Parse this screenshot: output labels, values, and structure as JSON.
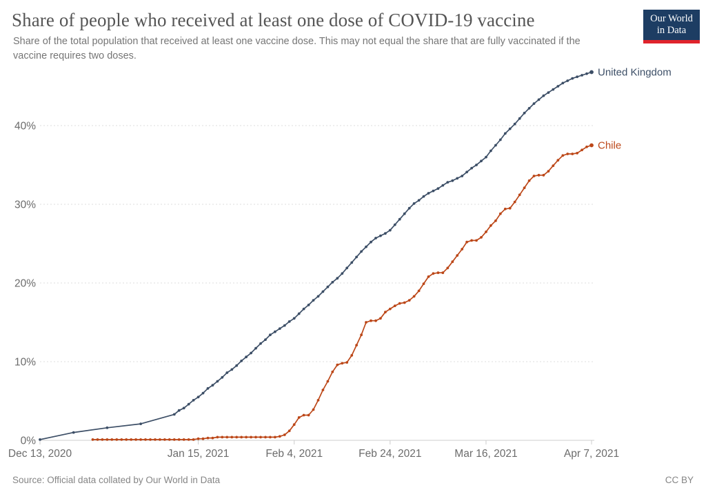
{
  "chart_data": {
    "type": "line",
    "title": "Share of people who received at least one dose of COVID-19 vaccine",
    "subtitle": "Share of the total population that received at least one vaccine dose. This may not equal the share that are fully vaccinated if the vaccine requires two doses.",
    "subtitle_lines": [
      "Share of the total population that received at least one vaccine dose. This may not equal the share that are fully vaccinated if the",
      "vaccine requires two doses."
    ],
    "x_axis": {
      "unit": "date (days since Dec 13, 2020)",
      "tick_labels": [
        "Dec 13, 2020",
        "Jan 15, 2021",
        "Feb 4, 2021",
        "Feb 24, 2021",
        "Mar 16, 2021",
        "Apr 7, 2021"
      ],
      "tick_days": [
        0,
        33,
        53,
        73,
        93,
        115
      ],
      "range_days": [
        0,
        115
      ]
    },
    "y_axis": {
      "tick_labels": [
        "0%",
        "10%",
        "20%",
        "30%",
        "40%"
      ],
      "tick_values": [
        0,
        10,
        20,
        30,
        40
      ],
      "ylim": [
        0,
        47
      ],
      "grid": "dashed horizontal gridlines, solid baseline"
    },
    "legend_position": "labels at end of each line",
    "grid_color": "#dedede",
    "axis_color": "#cccccc",
    "tick_text_color": "#6b6b6b",
    "series": [
      {
        "name": "United Kingdom",
        "color": "#3C4E66",
        "points_day_pct": [
          [
            0,
            0.1
          ],
          [
            7,
            1.0
          ],
          [
            14,
            1.6
          ],
          [
            21,
            2.1
          ],
          [
            28,
            3.3
          ],
          [
            29,
            3.8
          ],
          [
            30,
            4.1
          ],
          [
            31,
            4.6
          ],
          [
            32,
            5.1
          ],
          [
            33,
            5.5
          ],
          [
            34,
            6.0
          ],
          [
            35,
            6.6
          ],
          [
            36,
            7.0
          ],
          [
            37,
            7.5
          ],
          [
            38,
            8.0
          ],
          [
            39,
            8.6
          ],
          [
            40,
            9.0
          ],
          [
            41,
            9.5
          ],
          [
            42,
            10.1
          ],
          [
            43,
            10.6
          ],
          [
            44,
            11.1
          ],
          [
            45,
            11.7
          ],
          [
            46,
            12.3
          ],
          [
            47,
            12.8
          ],
          [
            48,
            13.4
          ],
          [
            49,
            13.8
          ],
          [
            50,
            14.2
          ],
          [
            51,
            14.6
          ],
          [
            52,
            15.1
          ],
          [
            53,
            15.5
          ],
          [
            54,
            16.1
          ],
          [
            55,
            16.7
          ],
          [
            56,
            17.2
          ],
          [
            57,
            17.8
          ],
          [
            58,
            18.3
          ],
          [
            59,
            18.9
          ],
          [
            60,
            19.5
          ],
          [
            61,
            20.1
          ],
          [
            62,
            20.6
          ],
          [
            63,
            21.2
          ],
          [
            64,
            21.9
          ],
          [
            65,
            22.6
          ],
          [
            66,
            23.3
          ],
          [
            67,
            24.0
          ],
          [
            68,
            24.6
          ],
          [
            69,
            25.2
          ],
          [
            70,
            25.7
          ],
          [
            71,
            26.0
          ],
          [
            72,
            26.3
          ],
          [
            73,
            26.7
          ],
          [
            74,
            27.4
          ],
          [
            75,
            28.1
          ],
          [
            76,
            28.8
          ],
          [
            77,
            29.5
          ],
          [
            78,
            30.1
          ],
          [
            79,
            30.5
          ],
          [
            80,
            31.0
          ],
          [
            81,
            31.4
          ],
          [
            82,
            31.7
          ],
          [
            83,
            32.0
          ],
          [
            84,
            32.4
          ],
          [
            85,
            32.8
          ],
          [
            86,
            33.0
          ],
          [
            87,
            33.3
          ],
          [
            88,
            33.6
          ],
          [
            89,
            34.1
          ],
          [
            90,
            34.6
          ],
          [
            91,
            35.0
          ],
          [
            92,
            35.5
          ],
          [
            93,
            36.0
          ],
          [
            94,
            36.8
          ],
          [
            95,
            37.5
          ],
          [
            96,
            38.2
          ],
          [
            97,
            39.0
          ],
          [
            98,
            39.6
          ],
          [
            99,
            40.2
          ],
          [
            100,
            40.9
          ],
          [
            101,
            41.6
          ],
          [
            102,
            42.2
          ],
          [
            103,
            42.8
          ],
          [
            104,
            43.3
          ],
          [
            105,
            43.8
          ],
          [
            106,
            44.2
          ],
          [
            107,
            44.6
          ],
          [
            108,
            45.0
          ],
          [
            109,
            45.4
          ],
          [
            110,
            45.7
          ],
          [
            111,
            46.0
          ],
          [
            112,
            46.2
          ],
          [
            113,
            46.4
          ],
          [
            114,
            46.6
          ],
          [
            115,
            46.8
          ]
        ]
      },
      {
        "name": "Chile",
        "color": "#BC4718",
        "points_day_pct": [
          [
            11,
            0.1
          ],
          [
            12,
            0.1
          ],
          [
            13,
            0.1
          ],
          [
            14,
            0.1
          ],
          [
            15,
            0.1
          ],
          [
            16,
            0.1
          ],
          [
            17,
            0.1
          ],
          [
            18,
            0.1
          ],
          [
            19,
            0.1
          ],
          [
            20,
            0.1
          ],
          [
            21,
            0.1
          ],
          [
            22,
            0.1
          ],
          [
            23,
            0.1
          ],
          [
            24,
            0.1
          ],
          [
            25,
            0.1
          ],
          [
            26,
            0.1
          ],
          [
            27,
            0.1
          ],
          [
            28,
            0.1
          ],
          [
            29,
            0.1
          ],
          [
            30,
            0.1
          ],
          [
            31,
            0.1
          ],
          [
            32,
            0.1
          ],
          [
            33,
            0.2
          ],
          [
            34,
            0.2
          ],
          [
            35,
            0.3
          ],
          [
            36,
            0.3
          ],
          [
            37,
            0.4
          ],
          [
            38,
            0.4
          ],
          [
            39,
            0.4
          ],
          [
            40,
            0.4
          ],
          [
            41,
            0.4
          ],
          [
            42,
            0.4
          ],
          [
            43,
            0.4
          ],
          [
            44,
            0.4
          ],
          [
            45,
            0.4
          ],
          [
            46,
            0.4
          ],
          [
            47,
            0.4
          ],
          [
            48,
            0.4
          ],
          [
            49,
            0.4
          ],
          [
            50,
            0.5
          ],
          [
            51,
            0.7
          ],
          [
            52,
            1.2
          ],
          [
            53,
            2.0
          ],
          [
            54,
            2.9
          ],
          [
            55,
            3.2
          ],
          [
            56,
            3.2
          ],
          [
            57,
            3.9
          ],
          [
            58,
            5.1
          ],
          [
            59,
            6.4
          ],
          [
            60,
            7.5
          ],
          [
            61,
            8.7
          ],
          [
            62,
            9.6
          ],
          [
            63,
            9.8
          ],
          [
            64,
            9.9
          ],
          [
            65,
            10.8
          ],
          [
            66,
            12.1
          ],
          [
            67,
            13.4
          ],
          [
            68,
            15.0
          ],
          [
            69,
            15.2
          ],
          [
            70,
            15.2
          ],
          [
            71,
            15.5
          ],
          [
            72,
            16.3
          ],
          [
            73,
            16.7
          ],
          [
            74,
            17.1
          ],
          [
            75,
            17.4
          ],
          [
            76,
            17.5
          ],
          [
            77,
            17.8
          ],
          [
            78,
            18.3
          ],
          [
            79,
            19.0
          ],
          [
            80,
            19.9
          ],
          [
            81,
            20.8
          ],
          [
            82,
            21.2
          ],
          [
            83,
            21.3
          ],
          [
            84,
            21.3
          ],
          [
            85,
            21.9
          ],
          [
            86,
            22.7
          ],
          [
            87,
            23.5
          ],
          [
            88,
            24.3
          ],
          [
            89,
            25.2
          ],
          [
            90,
            25.4
          ],
          [
            91,
            25.4
          ],
          [
            92,
            25.8
          ],
          [
            93,
            26.5
          ],
          [
            94,
            27.3
          ],
          [
            95,
            27.9
          ],
          [
            96,
            28.8
          ],
          [
            97,
            29.4
          ],
          [
            98,
            29.5
          ],
          [
            99,
            30.3
          ],
          [
            100,
            31.2
          ],
          [
            101,
            32.1
          ],
          [
            102,
            33.0
          ],
          [
            103,
            33.6
          ],
          [
            104,
            33.7
          ],
          [
            105,
            33.7
          ],
          [
            106,
            34.2
          ],
          [
            107,
            34.9
          ],
          [
            108,
            35.6
          ],
          [
            109,
            36.2
          ],
          [
            110,
            36.4
          ],
          [
            111,
            36.4
          ],
          [
            112,
            36.5
          ],
          [
            113,
            36.9
          ],
          [
            114,
            37.3
          ],
          [
            115,
            37.5
          ]
        ]
      }
    ]
  },
  "logo": {
    "line1": "Our World",
    "line2": "in Data",
    "bg_color": "#1D3D63",
    "bar_color": "#E0232C",
    "text_color": "#FFFFFF"
  },
  "footer": {
    "source": "Source: Official data collated by Our World in Data",
    "license": "CC BY"
  }
}
